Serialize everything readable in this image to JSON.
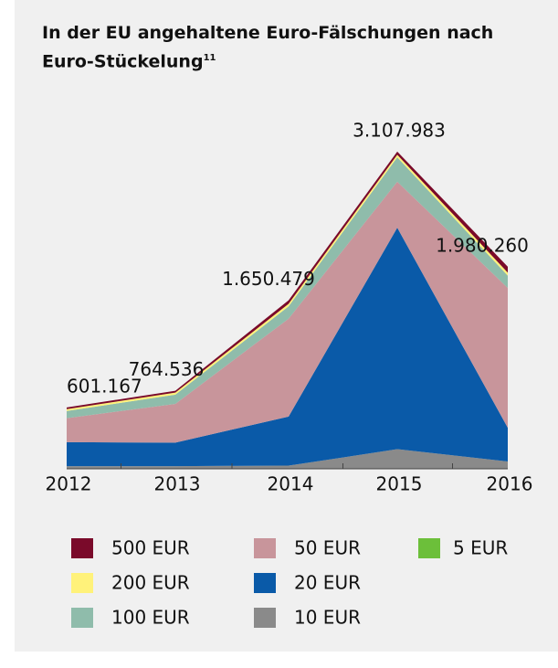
{
  "chart_data": {
    "type": "stacked_area",
    "title": "In der EU angehaltene Euro-Fälschungen nach Euro-Stückelung",
    "title_footnote": "11",
    "categories": [
      "2012",
      "2013",
      "2014",
      "2015",
      "2016"
    ],
    "ylim": [
      0,
      3250000
    ],
    "series": [
      {
        "name": "5 EUR",
        "color": "#6cbf3a",
        "values": [
          1000,
          1000,
          1000,
          2000,
          2000
        ]
      },
      {
        "name": "10 EUR",
        "color": "#8a8a8a",
        "values": [
          25000,
          25000,
          30000,
          190000,
          70000
        ]
      },
      {
        "name": "20 EUR",
        "color": "#0a5aa8",
        "values": [
          235000,
          230000,
          480000,
          2170000,
          330000
        ]
      },
      {
        "name": "50 EUR",
        "color": "#c8959b",
        "values": [
          235000,
          380000,
          960000,
          450000,
          1370000
        ]
      },
      {
        "name": "100 EUR",
        "color": "#8fbcab",
        "values": [
          70000,
          90000,
          120000,
          240000,
          120000
        ]
      },
      {
        "name": "200 EUR",
        "color": "#fff27a",
        "values": [
          18000,
          20000,
          25000,
          25000,
          30000
        ]
      },
      {
        "name": "500 EUR",
        "color": "#7a0a2a",
        "values": [
          17167,
          18536,
          34479,
          30983,
          58260
        ]
      }
    ],
    "totals": {
      "values": [
        601167,
        764536,
        1650479,
        3107983,
        1980260
      ],
      "value_labels": [
        "601.167",
        "764.536",
        "1.650.479",
        "3.107.983",
        "1.980.260"
      ]
    }
  }
}
